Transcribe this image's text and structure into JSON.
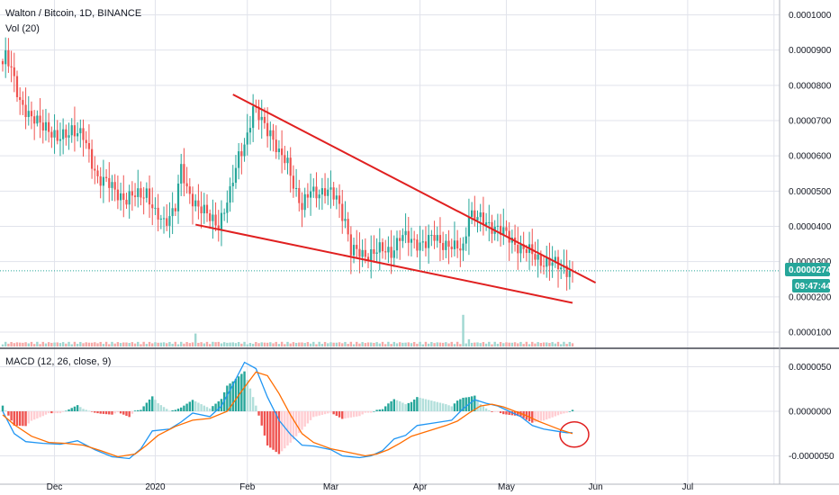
{
  "header": {
    "symbol_line": "Walton / Bitcoin, 1D, BINANCE",
    "volume_label": "Vol (20)",
    "macd_label": "MACD (12, 26, close, 9)"
  },
  "price_tag": {
    "value": "0.0000274",
    "countdown": "09:47:44"
  },
  "colors": {
    "up": "#26a69a",
    "down": "#ef5350",
    "up_vol": "#9fd7d1",
    "down_vol": "#f6a9a7",
    "hist_up_strong": "#26a69a",
    "hist_up_weak": "#b2dfdb",
    "hist_down_strong": "#ef5350",
    "hist_down_weak": "#ffcdd2",
    "macd_line": "#2196f3",
    "signal_line": "#ff6d00",
    "drawing": "#e02020",
    "price_line": "#26a69a",
    "grid": "#e1e3eb",
    "axis_text": "#131722"
  },
  "chart_data": [
    {
      "type": "candlestick",
      "title": "Walton / Bitcoin, 1D, BINANCE",
      "x_ticks": [
        "Dec",
        "2020",
        "Feb",
        "Mar",
        "Apr",
        "May",
        "Jun",
        "Jul"
      ],
      "y_ticks": [
        "0.0001000",
        "0.0000900",
        "0.0000800",
        "0.0000700",
        "0.0000600",
        "0.0000500",
        "0.0000400",
        "0.0000300",
        "0.0000200",
        "0.0000100"
      ],
      "y_range": [
        1.5e-06,
        0.000103
      ],
      "x_range": [
        0,
        269
      ],
      "last_price": 2.74e-05,
      "close_anchors": [
        [
          0,
          8.6e-05
        ],
        [
          1,
          8.8e-05
        ],
        [
          3,
          8.4e-05
        ],
        [
          6,
          7.6e-05
        ],
        [
          10,
          7e-05
        ],
        [
          15,
          6.9e-05
        ],
        [
          19,
          6.4e-05
        ],
        [
          24,
          6.8e-05
        ],
        [
          28,
          6.5e-05
        ],
        [
          33,
          5.4e-05
        ],
        [
          38,
          5.1e-05
        ],
        [
          43,
          4.75e-05
        ],
        [
          47,
          4.9e-05
        ],
        [
          50,
          5e-05
        ],
        [
          53,
          4.3e-05
        ],
        [
          56,
          4.1e-05
        ],
        [
          60,
          4.6e-05
        ],
        [
          62,
          5.6e-05
        ],
        [
          64,
          5e-05
        ],
        [
          68,
          4.6e-05
        ],
        [
          72,
          4.2e-05
        ],
        [
          75,
          4.1e-05
        ],
        [
          79,
          4.9e-05
        ],
        [
          82,
          6e-05
        ],
        [
          85,
          6.6e-05
        ],
        [
          87,
          7.3e-05
        ],
        [
          90,
          7e-05
        ],
        [
          93,
          6.7e-05
        ],
        [
          96,
          6e-05
        ],
        [
          99,
          5.8e-05
        ],
        [
          102,
          5e-05
        ],
        [
          104,
          4.5e-05
        ],
        [
          107,
          5e-05
        ],
        [
          112,
          5e-05
        ],
        [
          116,
          4.8e-05
        ],
        [
          119,
          4.2e-05
        ],
        [
          121,
          3.3e-05
        ],
        [
          125,
          3.2e-05
        ],
        [
          130,
          3.3e-05
        ],
        [
          135,
          3.3e-05
        ],
        [
          138,
          3.7e-05
        ],
        [
          142,
          3.6e-05
        ],
        [
          147,
          3.5e-05
        ],
        [
          150,
          3.7e-05
        ],
        [
          154,
          3.5e-05
        ],
        [
          157,
          3.35e-05
        ],
        [
          160,
          3.4e-05
        ],
        [
          162,
          4.4e-05
        ],
        [
          165,
          4.2e-05
        ],
        [
          168,
          4.1e-05
        ],
        [
          171,
          4e-05
        ],
        [
          174,
          3.8e-05
        ],
        [
          177,
          3.6e-05
        ],
        [
          180,
          3.4e-05
        ],
        [
          184,
          3.2e-05
        ],
        [
          188,
          3e-05
        ],
        [
          192,
          2.9e-05
        ],
        [
          196,
          2.8e-05
        ],
        [
          198,
          2.74e-05
        ]
      ],
      "drawings": {
        "upper_trendline": [
          [
            80,
            7.74e-05
          ],
          [
            206,
            2.4e-05
          ]
        ],
        "lower_trendline": [
          [
            67,
            4.05e-05
          ],
          [
            198,
            1.83e-05
          ]
        ]
      }
    },
    {
      "type": "bar",
      "title": "Vol (20)",
      "note": "relative volume, spikes near Jan-29, Feb-07 and Apr-17",
      "spikes": [
        [
          67,
          0.36
        ],
        [
          74,
          0.12
        ],
        [
          160,
          0.88
        ],
        [
          162,
          0.2
        ],
        [
          86,
          0.1
        ]
      ]
    },
    {
      "type": "line",
      "title": "MACD (12, 26, close, 9)",
      "y_ticks": [
        "0.0000050",
        "0.0000000",
        "-0.0000050"
      ],
      "y_range": [
        -6.5e-06,
        6.5e-06
      ],
      "series": [
        {
          "name": "MACD",
          "points": [
            [
              0,
              0.0
            ],
            [
              4,
              -2.5
            ],
            [
              8,
              -3.4
            ],
            [
              14,
              -3.6
            ],
            [
              20,
              -3.7
            ],
            [
              26,
              -3.3
            ],
            [
              32,
              -4.3
            ],
            [
              38,
              -5.1
            ],
            [
              44,
              -5.3
            ],
            [
              48,
              -4.2
            ],
            [
              52,
              -2.2
            ],
            [
              58,
              -2.0
            ],
            [
              62,
              -1.2
            ],
            [
              66,
              -0.2
            ],
            [
              72,
              -0.6
            ],
            [
              76,
              0.6
            ],
            [
              80,
              3.0
            ],
            [
              84,
              5.5
            ],
            [
              88,
              4.8
            ],
            [
              92,
              1.6
            ],
            [
              96,
              -1.0
            ],
            [
              100,
              -2.6
            ],
            [
              104,
              -3.8
            ],
            [
              108,
              -3.9
            ],
            [
              114,
              -4.3
            ],
            [
              118,
              -5.0
            ],
            [
              124,
              -5.2
            ],
            [
              128,
              -5.0
            ],
            [
              132,
              -4.4
            ],
            [
              136,
              -3.1
            ],
            [
              140,
              -2.7
            ],
            [
              144,
              -1.6
            ],
            [
              150,
              -1.3
            ],
            [
              156,
              -1.0
            ],
            [
              160,
              0.3
            ],
            [
              164,
              1.3
            ],
            [
              168,
              0.9
            ],
            [
              172,
              0.6
            ],
            [
              176,
              0.0
            ],
            [
              180,
              -0.6
            ],
            [
              184,
              -1.6
            ],
            [
              188,
              -2.0
            ],
            [
              192,
              -2.2
            ],
            [
              196,
              -2.4
            ],
            [
              198,
              -2.4
            ]
          ]
        },
        {
          "name": "Signal",
          "points": [
            [
              0,
              -0.4
            ],
            [
              4,
              -1.5
            ],
            [
              10,
              -2.8
            ],
            [
              16,
              -3.5
            ],
            [
              22,
              -3.6
            ],
            [
              28,
              -3.8
            ],
            [
              34,
              -4.4
            ],
            [
              40,
              -5.1
            ],
            [
              46,
              -4.8
            ],
            [
              50,
              -3.8
            ],
            [
              54,
              -2.7
            ],
            [
              60,
              -1.7
            ],
            [
              66,
              -1.0
            ],
            [
              72,
              -0.8
            ],
            [
              78,
              0.0
            ],
            [
              84,
              2.7
            ],
            [
              88,
              4.4
            ],
            [
              92,
              4.0
            ],
            [
              96,
              2.0
            ],
            [
              100,
              -0.4
            ],
            [
              104,
              -2.5
            ],
            [
              108,
              -3.5
            ],
            [
              114,
              -4.2
            ],
            [
              120,
              -4.6
            ],
            [
              126,
              -5.0
            ],
            [
              130,
              -4.8
            ],
            [
              134,
              -4.3
            ],
            [
              138,
              -3.6
            ],
            [
              142,
              -2.8
            ],
            [
              148,
              -2.2
            ],
            [
              154,
              -1.6
            ],
            [
              158,
              -1.1
            ],
            [
              162,
              -0.2
            ],
            [
              166,
              0.6
            ],
            [
              170,
              0.8
            ],
            [
              174,
              0.5
            ],
            [
              178,
              0.0
            ],
            [
              182,
              -0.5
            ],
            [
              186,
              -1.1
            ],
            [
              190,
              -1.6
            ],
            [
              194,
              -2.1
            ],
            [
              198,
              -2.5
            ]
          ]
        }
      ]
    }
  ]
}
